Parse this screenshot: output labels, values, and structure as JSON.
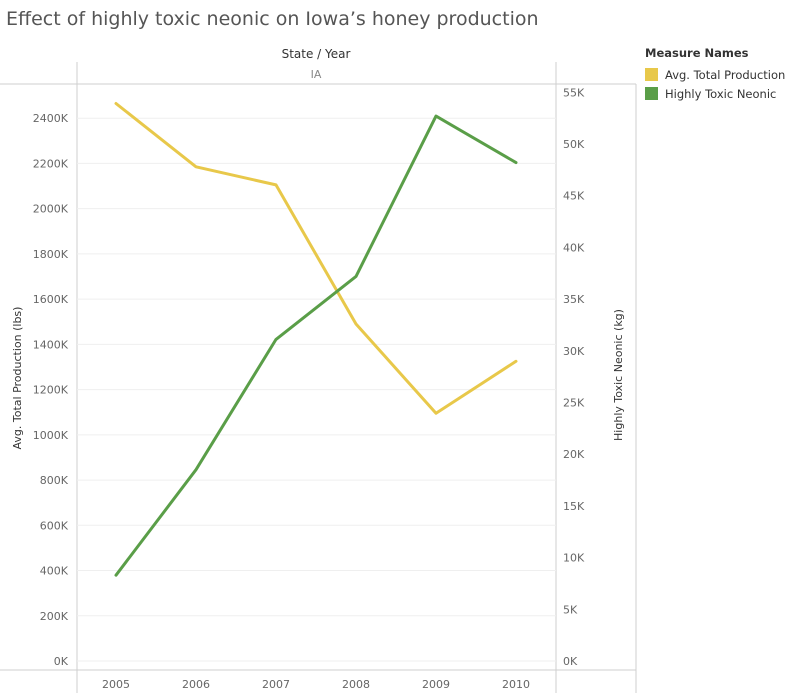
{
  "chart_data": {
    "type": "line",
    "title": "Effect of highly toxic neonic on Iowa’s honey production",
    "column_header": "State / Year",
    "pane_label": "IA",
    "categories": [
      "2005",
      "2006",
      "2007",
      "2008",
      "2009",
      "2010"
    ],
    "series": [
      {
        "name": "Avg. Total Production",
        "axis": "left",
        "color": "#e8c84a",
        "values": [
          2465000,
          2185000,
          2105000,
          1490000,
          1095000,
          1325000
        ]
      },
      {
        "name": "Highly Toxic Neonic",
        "axis": "right",
        "color": "#5a9e48",
        "values": [
          8300,
          18500,
          31100,
          37200,
          52700,
          48200
        ]
      }
    ],
    "left_axis": {
      "label": "Avg. Total Production (lbs)",
      "range": [
        0,
        2560000
      ],
      "ticks": [
        0,
        200000,
        400000,
        600000,
        800000,
        1000000,
        1200000,
        1400000,
        1600000,
        1800000,
        2000000,
        2200000,
        2400000
      ],
      "tick_labels": [
        "0K",
        "200K",
        "400K",
        "600K",
        "800K",
        "1000K",
        "1200K",
        "1400K",
        "1600K",
        "1800K",
        "2000K",
        "2200K",
        "2400K"
      ]
    },
    "right_axis": {
      "label": "Highly Toxic Neonic (kg)",
      "range": [
        0,
        56000
      ],
      "ticks": [
        0,
        5000,
        10000,
        15000,
        20000,
        25000,
        30000,
        35000,
        40000,
        45000,
        50000,
        55000
      ],
      "tick_labels": [
        "0K",
        "5K",
        "10K",
        "15K",
        "20K",
        "25K",
        "30K",
        "35K",
        "40K",
        "45K",
        "50K",
        "55K"
      ]
    },
    "grid": true,
    "legend": {
      "title": "Measure Names",
      "placement": "top-right"
    }
  }
}
